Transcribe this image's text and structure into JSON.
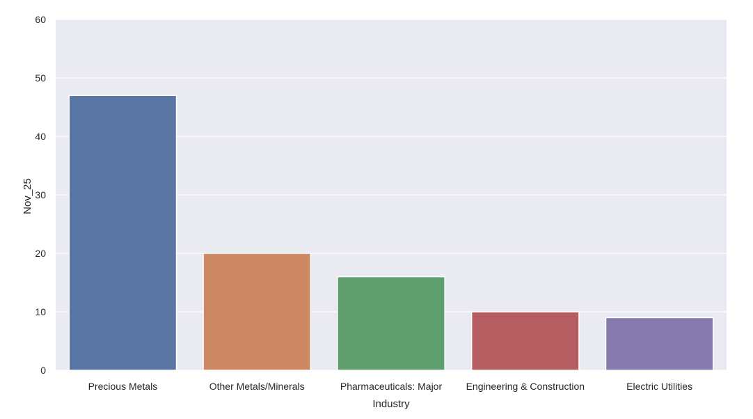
{
  "chart_data": {
    "type": "bar",
    "title": "",
    "xlabel": "Industry",
    "ylabel": "Nov_25",
    "categories": [
      "Precious Metals",
      "Other Metals/Minerals",
      "Pharmaceuticals: Major",
      "Engineering & Construction",
      "Electric Utilities"
    ],
    "values": [
      47,
      20,
      16,
      10,
      9
    ],
    "colors": [
      "#5875a4",
      "#cc8963",
      "#5f9e6e",
      "#b55d60",
      "#857aab"
    ],
    "ylim": [
      0,
      60
    ],
    "yticks": [
      "0",
      "10",
      "20",
      "30",
      "40",
      "50",
      "60"
    ],
    "grid": true,
    "background": "#eaeaf2"
  }
}
